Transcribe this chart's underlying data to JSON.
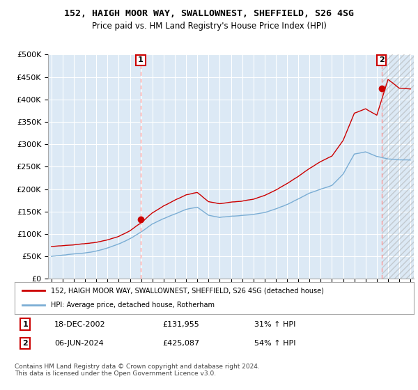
{
  "title": "152, HAIGH MOOR WAY, SWALLOWNEST, SHEFFIELD, S26 4SG",
  "subtitle": "Price paid vs. HM Land Registry's House Price Index (HPI)",
  "legend_line1": "152, HAIGH MOOR WAY, SWALLOWNEST, SHEFFIELD, S26 4SG (detached house)",
  "legend_line2": "HPI: Average price, detached house, Rotherham",
  "transaction1_date": "18-DEC-2002",
  "transaction1_price": "£131,955",
  "transaction1_hpi": "31% ↑ HPI",
  "transaction2_date": "06-JUN-2024",
  "transaction2_price": "£425,087",
  "transaction2_hpi": "54% ↑ HPI",
  "footer": "Contains HM Land Registry data © Crown copyright and database right 2024.\nThis data is licensed under the Open Government Licence v3.0.",
  "background_color": "#ffffff",
  "plot_bg_color": "#dce9f5",
  "grid_color": "#ffffff",
  "red_color": "#cc0000",
  "blue_color": "#7aadd4",
  "transaction1_x": 2002.96,
  "transaction1_y": 131955,
  "transaction2_x": 2024.43,
  "transaction2_y": 425087,
  "ylim": [
    0,
    500000
  ],
  "yticks": [
    0,
    50000,
    100000,
    150000,
    200000,
    250000,
    300000,
    350000,
    400000,
    450000,
    500000
  ],
  "xmin": 1995,
  "xmax": 2027
}
